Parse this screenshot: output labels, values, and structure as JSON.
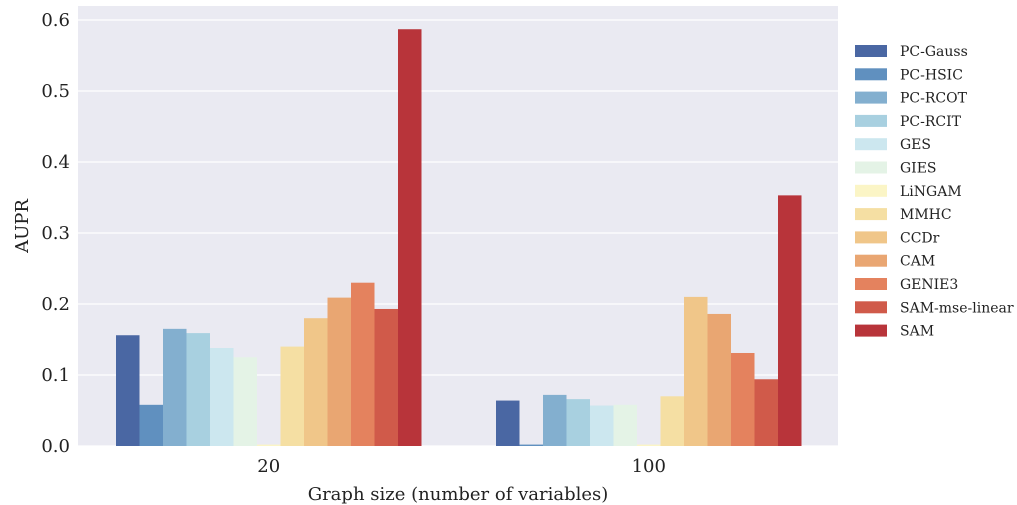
{
  "chart_data": {
    "type": "bar",
    "title": "",
    "xlabel": "Graph size (number of variables)",
    "ylabel": "AUPR",
    "ylim": [
      0,
      0.62
    ],
    "yticks": [
      "0.0",
      "0.1",
      "0.2",
      "0.3",
      "0.4",
      "0.5",
      "0.6"
    ],
    "grid": true,
    "legend_position": "right",
    "categories": [
      "20",
      "100"
    ],
    "series": [
      {
        "name": "PC-Gauss",
        "color": "#4a67a3",
        "values": [
          0.156,
          0.064
        ]
      },
      {
        "name": "PC-HSIC",
        "color": "#6090bf",
        "values": [
          0.058,
          0.002
        ]
      },
      {
        "name": "PC-RCOT",
        "color": "#83afcf",
        "values": [
          0.165,
          0.072
        ]
      },
      {
        "name": "PC-RCIT",
        "color": "#a8d0e0",
        "values": [
          0.159,
          0.066
        ]
      },
      {
        "name": "GES",
        "color": "#cce7ef",
        "values": [
          0.138,
          0.057
        ]
      },
      {
        "name": "GIES",
        "color": "#e4f3e6",
        "values": [
          0.125,
          0.058
        ]
      },
      {
        "name": "LiNGAM",
        "color": "#fbf5c6",
        "values": [
          0.002,
          0.002
        ]
      },
      {
        "name": "MMHC",
        "color": "#f5dfa3",
        "values": [
          0.14,
          0.07
        ]
      },
      {
        "name": "CCDr",
        "color": "#f0c689",
        "values": [
          0.18,
          0.21
        ]
      },
      {
        "name": "CAM",
        "color": "#e9a672",
        "values": [
          0.209,
          0.186
        ]
      },
      {
        "name": "GENIE3",
        "color": "#e4825e",
        "values": [
          0.23,
          0.131
        ]
      },
      {
        "name": "SAM-mse-linear",
        "color": "#d05a4a",
        "values": [
          0.193,
          0.094
        ]
      },
      {
        "name": "SAM",
        "color": "#b8343a",
        "values": [
          0.587,
          0.353
        ]
      }
    ]
  }
}
